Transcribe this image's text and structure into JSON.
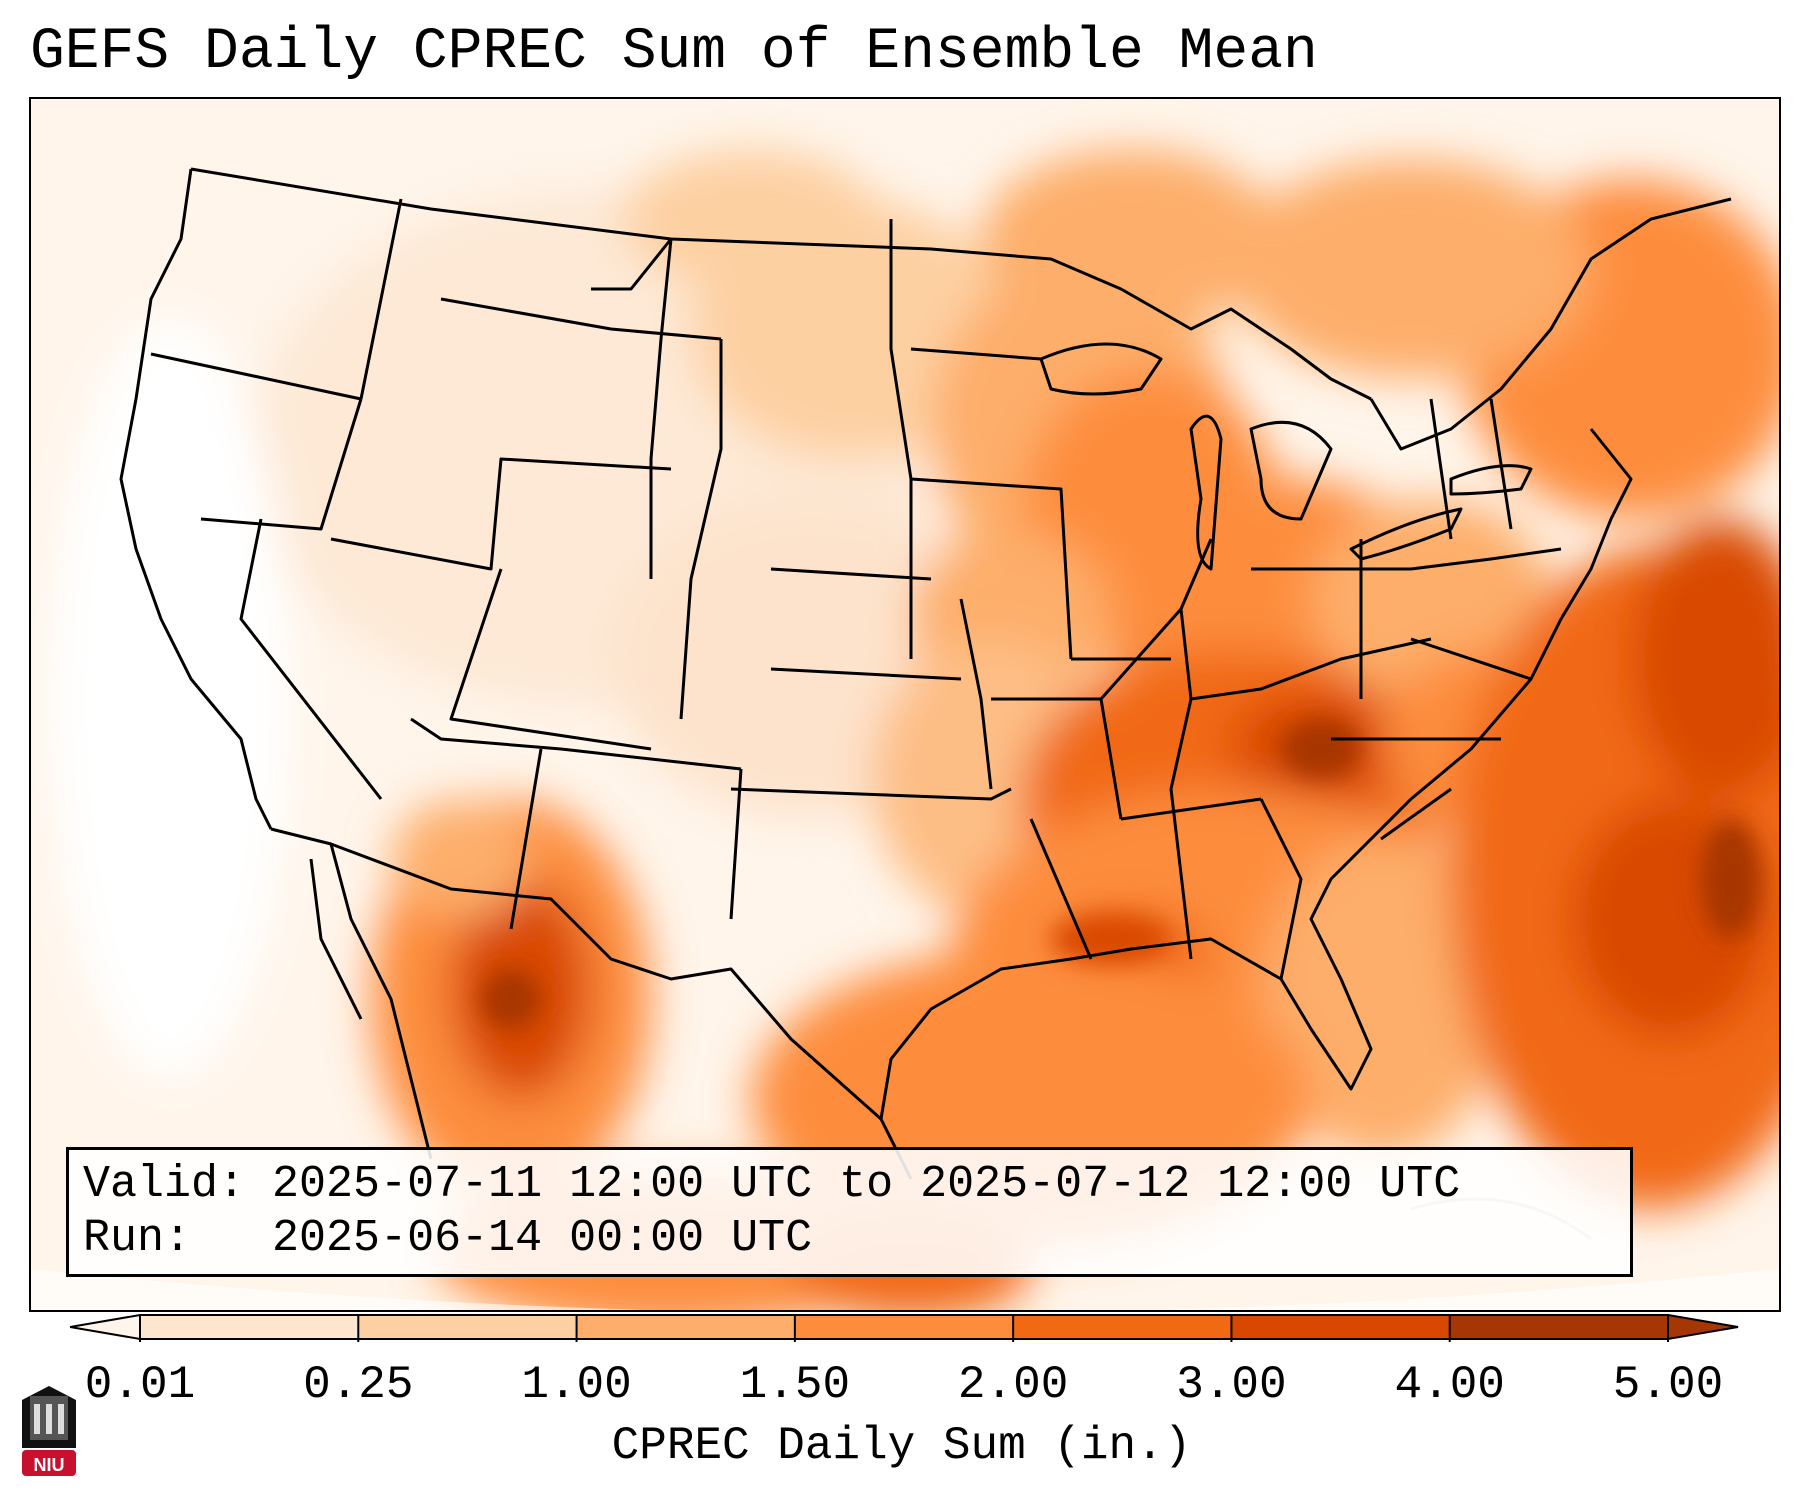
{
  "title": "GEFS Daily CPREC Sum of Ensemble Mean",
  "info": {
    "valid_label": "Valid:",
    "valid_value": "2025-07-11 12:00 UTC to 2025-07-12 12:00 UTC",
    "run_label": "Run:",
    "run_value": "2025-06-14 00:00 UTC"
  },
  "colorbar": {
    "label": "CPREC Daily Sum (in.)",
    "ticks": [
      "0.01",
      "0.25",
      "1.00",
      "1.50",
      "2.00",
      "3.00",
      "4.00",
      "5.00"
    ],
    "colors": [
      "#fff5eb",
      "#fee6ce",
      "#fdd0a2",
      "#fdae6b",
      "#fd8d3c",
      "#f16913",
      "#d94801",
      "#a63603"
    ],
    "extend": "both"
  },
  "logo": {
    "text": "NIU",
    "color": "#c8102e"
  }
}
